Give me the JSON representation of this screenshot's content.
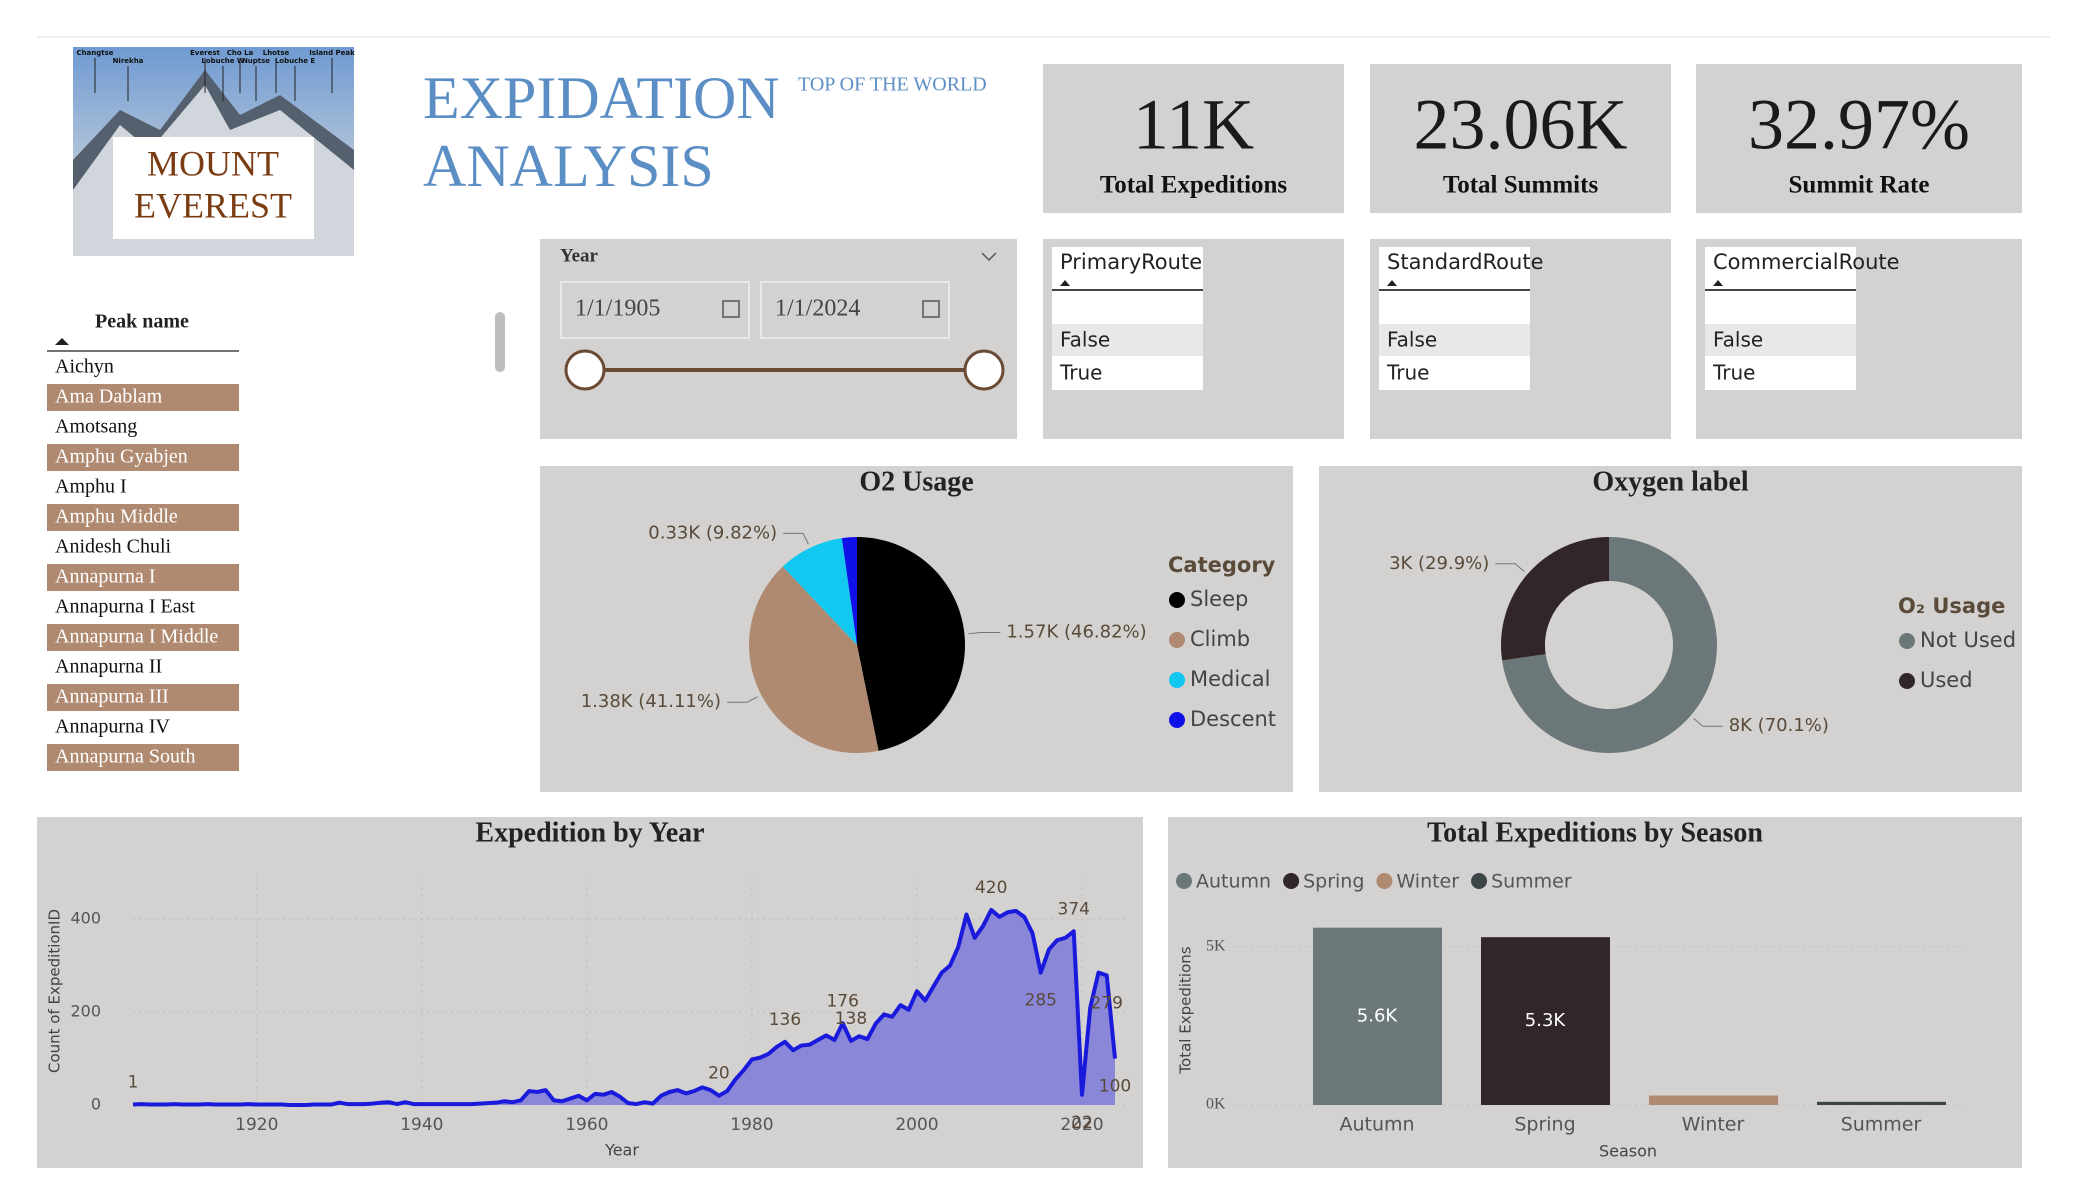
{
  "header": {
    "logo_labels": [
      "Changtse",
      "Nirekha",
      "Everest",
      "Cho La",
      "Lobuche W",
      "Nuptse",
      "Lhotse",
      "Lobuche E",
      "Island Peak"
    ],
    "logo_title": [
      "MOUNT",
      "EVEREST"
    ],
    "title": [
      "EXPIDATION",
      "ANALYSIS"
    ],
    "subtitle": "TOP OF THE WORLD"
  },
  "kpis": [
    {
      "value": "11K",
      "label": "Total Expeditions"
    },
    {
      "value": "23.06K",
      "label": "Total Summits"
    },
    {
      "value": "32.97%",
      "label": "Summit Rate"
    }
  ],
  "year_slicer": {
    "title": "Year",
    "start": "1/1/1905",
    "end": "1/1/2024"
  },
  "route_slicers": [
    {
      "title": "PrimaryRoute",
      "options": [
        "False",
        "True"
      ]
    },
    {
      "title": "StandardRoute",
      "options": [
        "False",
        "True"
      ]
    },
    {
      "title": "CommercialRoute",
      "options": [
        "False",
        "True"
      ]
    }
  ],
  "peak_list": {
    "header": "Peak name",
    "items": [
      "Aichyn",
      "Ama Dablam",
      "Amotsang",
      "Amphu Gyabjen",
      "Amphu I",
      "Amphu Middle",
      "Anidesh Chuli",
      "Annapurna I",
      "Annapurna I East",
      "Annapurna I Middle",
      "Annapurna II",
      "Annapurna III",
      "Annapurna IV",
      "Annapurna South"
    ],
    "selected": [
      false,
      true,
      false,
      true,
      false,
      true,
      false,
      true,
      false,
      true,
      false,
      true,
      false,
      true
    ]
  },
  "chart_data": [
    {
      "type": "pie",
      "title": "O2 Usage",
      "legend_title": "Category",
      "categories": [
        "Sleep",
        "Climb",
        "Medical",
        "Descent"
      ],
      "values": [
        1570,
        1380,
        330,
        75
      ],
      "value_labels": [
        "1.57K (46.82%)",
        "1.38K (41.11%)",
        "0.33K (9.82%)",
        null
      ],
      "colors": [
        "#000000",
        "#b08a70",
        "#12c8f0",
        "#1010e8"
      ]
    },
    {
      "type": "donut",
      "title": "Oxygen label",
      "legend_title": "O₂ Usage",
      "categories": [
        "Not Used",
        "Used"
      ],
      "values": [
        8000,
        3000
      ],
      "value_labels": [
        "8K (70.1%)",
        "3K (29.9%)"
      ],
      "colors": [
        "#6b7778",
        "#322728"
      ]
    },
    {
      "type": "area",
      "title": "Expedition by Year",
      "x_label": "Year",
      "y_label": "Count of ExpeditionID",
      "x": [
        1905,
        1906,
        1907,
        1908,
        1909,
        1910,
        1911,
        1912,
        1913,
        1914,
        1915,
        1916,
        1917,
        1918,
        1919,
        1920,
        1921,
        1922,
        1923,
        1924,
        1925,
        1926,
        1927,
        1928,
        1929,
        1930,
        1931,
        1932,
        1933,
        1934,
        1935,
        1936,
        1937,
        1938,
        1939,
        1940,
        1941,
        1942,
        1943,
        1944,
        1945,
        1946,
        1947,
        1948,
        1949,
        1950,
        1951,
        1952,
        1953,
        1954,
        1955,
        1956,
        1957,
        1958,
        1959,
        1960,
        1961,
        1962,
        1963,
        1964,
        1965,
        1966,
        1967,
        1968,
        1969,
        1970,
        1971,
        1972,
        1973,
        1974,
        1975,
        1976,
        1977,
        1978,
        1979,
        1980,
        1981,
        1982,
        1983,
        1984,
        1985,
        1986,
        1987,
        1988,
        1989,
        1990,
        1991,
        1992,
        1993,
        1994,
        1995,
        1996,
        1997,
        1998,
        1999,
        2000,
        2001,
        2002,
        2003,
        2004,
        2005,
        2006,
        2007,
        2008,
        2009,
        2010,
        2011,
        2012,
        2013,
        2014,
        2015,
        2016,
        2017,
        2018,
        2019,
        2020,
        2021,
        2022,
        2023,
        2024
      ],
      "values": [
        1,
        2,
        1,
        1,
        1,
        2,
        1,
        1,
        1,
        2,
        1,
        1,
        1,
        1,
        2,
        1,
        1,
        1,
        1,
        0,
        0,
        0,
        1,
        1,
        1,
        5,
        2,
        2,
        2,
        3,
        5,
        6,
        2,
        6,
        2,
        2,
        2,
        2,
        2,
        2,
        2,
        2,
        3,
        4,
        5,
        8,
        6,
        10,
        30,
        28,
        32,
        10,
        8,
        14,
        20,
        10,
        24,
        22,
        28,
        18,
        4,
        2,
        6,
        3,
        20,
        28,
        32,
        25,
        30,
        38,
        32,
        20,
        30,
        55,
        75,
        98,
        102,
        110,
        125,
        136,
        118,
        128,
        130,
        140,
        150,
        140,
        176,
        138,
        148,
        142,
        175,
        195,
        190,
        215,
        205,
        245,
        225,
        255,
        285,
        300,
        340,
        410,
        360,
        385,
        420,
        405,
        415,
        418,
        405,
        370,
        285,
        335,
        355,
        360,
        374,
        22,
        210,
        285,
        279,
        100
      ],
      "data_labels_at": [
        1905,
        1976,
        1984,
        1991,
        1992,
        2009,
        2015,
        2019,
        2020,
        2023,
        2024
      ],
      "color": "#1a1adc",
      "fill": "#8a87d8",
      "xlim": [
        1905,
        2024
      ],
      "xticks": [
        1920,
        1940,
        1960,
        1980,
        2000,
        2020
      ],
      "ylim": [
        0,
        450
      ],
      "yticks": [
        0,
        200,
        400
      ],
      "grid": true
    },
    {
      "type": "bar",
      "title": "Total Expeditions by Season",
      "x_label": "Season",
      "y_label": "Total Expeditions",
      "categories": [
        "Autumn",
        "Spring",
        "Winter",
        "Summer"
      ],
      "values": [
        5600,
        5300,
        300,
        100
      ],
      "value_labels": [
        "5.6K",
        "5.3K",
        null,
        null
      ],
      "colors": [
        "#6b7778",
        "#322728",
        "#b08a70",
        "#3d4647"
      ],
      "ylim": [
        0,
        6000
      ],
      "yticks": [
        {
          "value": 0,
          "label": "0K"
        },
        {
          "value": 5000,
          "label": "5K"
        }
      ],
      "grid": true,
      "legend": "top-left"
    }
  ]
}
